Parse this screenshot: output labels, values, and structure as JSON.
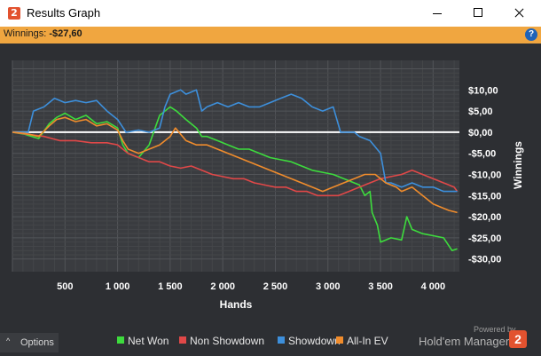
{
  "window": {
    "title": "Results Graph",
    "app_icon_glyph": "2",
    "controls": [
      "minimize-icon",
      "maximize-icon",
      "close-icon"
    ]
  },
  "winnings_bar": {
    "label": "Winnings: ",
    "value": "-$27,60",
    "help_glyph": "?"
  },
  "chart_data": {
    "type": "line",
    "xlabel": "Hands",
    "ylabel": "Winnings",
    "xlim": [
      0,
      4250
    ],
    "ylim": [
      -33,
      17
    ],
    "x_ticks": [
      500,
      1000,
      1500,
      2000,
      2500,
      3000,
      3500,
      4000
    ],
    "x_tick_labels": [
      "500",
      "1 000",
      "1 500",
      "2 000",
      "2 500",
      "3 000",
      "3 500",
      "4 000"
    ],
    "y_ticks": [
      10,
      5,
      0,
      -5,
      -10,
      -15,
      -20,
      -25,
      -30
    ],
    "y_tick_labels": [
      "$10,00",
      "$5,00",
      "$0,00",
      "-$5,00",
      "-$10,00",
      "-$15,00",
      "-$20,00",
      "-$25,00",
      "-$30,00"
    ],
    "grid": true,
    "legend_position": "bottom",
    "series": [
      {
        "name": "Net Won",
        "color": "#3ddb3d",
        "points": [
          [
            0,
            0
          ],
          [
            120,
            -0.5
          ],
          [
            250,
            -1.5
          ],
          [
            350,
            2
          ],
          [
            420,
            3.5
          ],
          [
            500,
            4.5
          ],
          [
            600,
            3
          ],
          [
            700,
            4
          ],
          [
            800,
            2
          ],
          [
            900,
            2.5
          ],
          [
            1000,
            1
          ],
          [
            1050,
            -3
          ],
          [
            1100,
            -5
          ],
          [
            1200,
            -6
          ],
          [
            1300,
            -3
          ],
          [
            1400,
            4
          ],
          [
            1500,
            6
          ],
          [
            1560,
            5
          ],
          [
            1650,
            3
          ],
          [
            1750,
            1
          ],
          [
            1800,
            -1
          ],
          [
            1850,
            -1
          ],
          [
            1950,
            -2
          ],
          [
            2050,
            -3
          ],
          [
            2150,
            -4
          ],
          [
            2250,
            -4
          ],
          [
            2350,
            -5
          ],
          [
            2450,
            -6
          ],
          [
            2550,
            -6.5
          ],
          [
            2650,
            -7
          ],
          [
            2750,
            -8
          ],
          [
            2850,
            -9
          ],
          [
            2950,
            -9.5
          ],
          [
            3050,
            -10
          ],
          [
            3150,
            -11
          ],
          [
            3250,
            -12
          ],
          [
            3300,
            -12.5
          ],
          [
            3350,
            -15
          ],
          [
            3400,
            -14
          ],
          [
            3420,
            -19
          ],
          [
            3470,
            -22
          ],
          [
            3500,
            -26
          ],
          [
            3600,
            -25
          ],
          [
            3700,
            -25.5
          ],
          [
            3750,
            -20
          ],
          [
            3800,
            -23
          ],
          [
            3900,
            -24
          ],
          [
            4000,
            -24.5
          ],
          [
            4100,
            -25
          ],
          [
            4180,
            -28
          ],
          [
            4230,
            -27.6
          ]
        ]
      },
      {
        "name": "Non Showdown",
        "color": "#e04848",
        "points": [
          [
            0,
            0
          ],
          [
            150,
            -0.5
          ],
          [
            300,
            -1
          ],
          [
            450,
            -2
          ],
          [
            600,
            -2
          ],
          [
            750,
            -2.5
          ],
          [
            900,
            -2.5
          ],
          [
            1000,
            -3
          ],
          [
            1100,
            -5
          ],
          [
            1200,
            -6
          ],
          [
            1300,
            -7
          ],
          [
            1400,
            -7
          ],
          [
            1500,
            -8
          ],
          [
            1600,
            -8.5
          ],
          [
            1700,
            -8
          ],
          [
            1800,
            -9
          ],
          [
            1900,
            -10
          ],
          [
            2000,
            -10.5
          ],
          [
            2100,
            -11
          ],
          [
            2200,
            -11
          ],
          [
            2300,
            -12
          ],
          [
            2400,
            -12.5
          ],
          [
            2500,
            -13
          ],
          [
            2600,
            -13
          ],
          [
            2700,
            -14
          ],
          [
            2800,
            -14
          ],
          [
            2900,
            -15
          ],
          [
            3000,
            -15
          ],
          [
            3100,
            -15
          ],
          [
            3200,
            -14
          ],
          [
            3300,
            -13
          ],
          [
            3400,
            -12
          ],
          [
            3500,
            -11
          ],
          [
            3600,
            -10.5
          ],
          [
            3700,
            -10
          ],
          [
            3800,
            -9
          ],
          [
            3900,
            -10
          ],
          [
            4000,
            -11
          ],
          [
            4100,
            -12
          ],
          [
            4200,
            -13
          ],
          [
            4230,
            -14
          ]
        ]
      },
      {
        "name": "Showdown",
        "color": "#3d8fdb",
        "points": [
          [
            0,
            0
          ],
          [
            150,
            0
          ],
          [
            200,
            5
          ],
          [
            300,
            6
          ],
          [
            400,
            8
          ],
          [
            500,
            7
          ],
          [
            600,
            7.5
          ],
          [
            700,
            7
          ],
          [
            800,
            7.5
          ],
          [
            900,
            5
          ],
          [
            1000,
            3
          ],
          [
            1080,
            0
          ],
          [
            1200,
            0.5
          ],
          [
            1300,
            0
          ],
          [
            1400,
            1
          ],
          [
            1450,
            6
          ],
          [
            1500,
            9
          ],
          [
            1600,
            10
          ],
          [
            1650,
            9
          ],
          [
            1750,
            10
          ],
          [
            1800,
            5
          ],
          [
            1850,
            6
          ],
          [
            1950,
            7
          ],
          [
            2050,
            6
          ],
          [
            2150,
            7
          ],
          [
            2250,
            6
          ],
          [
            2350,
            6
          ],
          [
            2450,
            7
          ],
          [
            2550,
            8
          ],
          [
            2650,
            9
          ],
          [
            2750,
            8
          ],
          [
            2850,
            6
          ],
          [
            2950,
            5
          ],
          [
            3050,
            6
          ],
          [
            3120,
            0
          ],
          [
            3250,
            0
          ],
          [
            3300,
            -1
          ],
          [
            3400,
            -2
          ],
          [
            3500,
            -5
          ],
          [
            3550,
            -12
          ],
          [
            3600,
            -12
          ],
          [
            3700,
            -13
          ],
          [
            3800,
            -12
          ],
          [
            3900,
            -13
          ],
          [
            4000,
            -13
          ],
          [
            4100,
            -14
          ],
          [
            4230,
            -14
          ]
        ]
      },
      {
        "name": "All-In EV",
        "color": "#f08c2c",
        "points": [
          [
            0,
            0
          ],
          [
            120,
            -0.3
          ],
          [
            250,
            -1
          ],
          [
            350,
            1.5
          ],
          [
            420,
            3
          ],
          [
            500,
            3.5
          ],
          [
            600,
            2.5
          ],
          [
            700,
            3
          ],
          [
            800,
            1.5
          ],
          [
            900,
            2
          ],
          [
            1000,
            0.5
          ],
          [
            1050,
            -2
          ],
          [
            1100,
            -4
          ],
          [
            1200,
            -5
          ],
          [
            1300,
            -4
          ],
          [
            1400,
            -3
          ],
          [
            1500,
            -1
          ],
          [
            1550,
            1
          ],
          [
            1650,
            -2
          ],
          [
            1750,
            -3
          ],
          [
            1850,
            -3
          ],
          [
            1950,
            -4
          ],
          [
            2050,
            -5
          ],
          [
            2150,
            -6
          ],
          [
            2250,
            -7
          ],
          [
            2350,
            -8
          ],
          [
            2450,
            -9
          ],
          [
            2550,
            -10
          ],
          [
            2650,
            -11
          ],
          [
            2750,
            -12
          ],
          [
            2850,
            -13
          ],
          [
            2950,
            -14
          ],
          [
            3050,
            -13
          ],
          [
            3150,
            -12
          ],
          [
            3250,
            -11
          ],
          [
            3350,
            -10
          ],
          [
            3450,
            -10
          ],
          [
            3550,
            -12
          ],
          [
            3650,
            -13
          ],
          [
            3700,
            -14
          ],
          [
            3800,
            -13
          ],
          [
            3900,
            -15
          ],
          [
            4000,
            -17
          ],
          [
            4100,
            -18
          ],
          [
            4150,
            -18.5
          ],
          [
            4230,
            -19
          ]
        ]
      }
    ]
  },
  "options_button": {
    "glyph": "^",
    "label": "Options"
  },
  "branding": {
    "powered_by": "Powered by",
    "name": "Hold'em Manager",
    "logo_glyph": "2"
  }
}
